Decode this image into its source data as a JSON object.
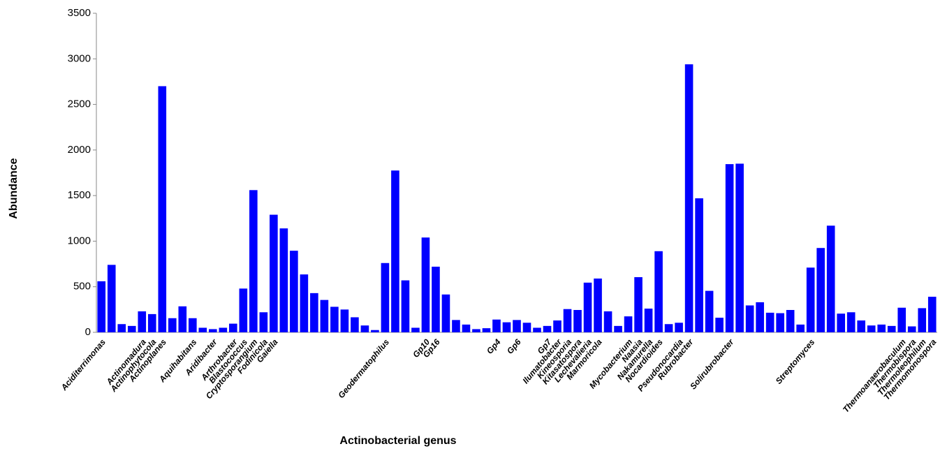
{
  "chart_data": {
    "type": "bar",
    "x_label": "Actinobacterial genus",
    "y_label": "Abundance",
    "color": "#0000ff",
    "ylim": [
      0,
      3500
    ],
    "yticks": [
      0,
      500,
      1000,
      1500,
      2000,
      2500,
      3000,
      3500
    ],
    "grid": false,
    "categories": [
      "Aciditerrimonas",
      null,
      null,
      null,
      "Actinomadura",
      "Actinophytocola",
      "Actinoplanes",
      null,
      null,
      "Aquihabitans",
      null,
      "Aridibacter",
      null,
      "Arthrobacter",
      "Blastococcus",
      "Cryptosporangium",
      "Fodinicola",
      "Gaiella",
      null,
      null,
      null,
      null,
      null,
      null,
      null,
      null,
      null,
      null,
      "Geodermatophilus",
      null,
      null,
      null,
      "Gp10",
      "Gp16",
      null,
      null,
      null,
      null,
      null,
      "Gp4",
      null,
      "Gp6",
      null,
      null,
      "Gp7",
      "Ilumatobacter",
      "Kineosporia",
      "Kitasatospora",
      "Lechevalieria",
      "Marmoricola",
      null,
      null,
      "Mycobacterium",
      "Naasia",
      "Nakamurella",
      "Nocardioides",
      null,
      "Pseudonocardia",
      "Rubrobacter",
      null,
      null,
      null,
      "Solirubrobacter",
      null,
      null,
      null,
      null,
      null,
      null,
      null,
      "Streptomyces",
      null,
      null,
      null,
      null,
      null,
      null,
      null,
      null,
      "Thermoanaerobaculum",
      "Thermobispora",
      "Thermoleophilum",
      "Thermomonospora"
    ],
    "values": [
      560,
      740,
      90,
      70,
      230,
      200,
      2700,
      155,
      285,
      155,
      50,
      35,
      50,
      95,
      480,
      1560,
      220,
      1290,
      1140,
      895,
      635,
      430,
      355,
      280,
      250,
      165,
      75,
      25,
      760,
      1775,
      570,
      50,
      1040,
      720,
      415,
      135,
      85,
      35,
      45,
      140,
      110,
      135,
      105,
      50,
      70,
      130,
      255,
      245,
      545,
      590,
      230,
      70,
      175,
      605,
      260,
      890,
      90,
      105,
      2940,
      1470,
      455,
      160,
      1845,
      1850,
      295,
      330,
      215,
      210,
      245,
      85,
      710,
      925,
      1170,
      205,
      220,
      130,
      75,
      85,
      70,
      270,
      65,
      265,
      390
    ]
  }
}
